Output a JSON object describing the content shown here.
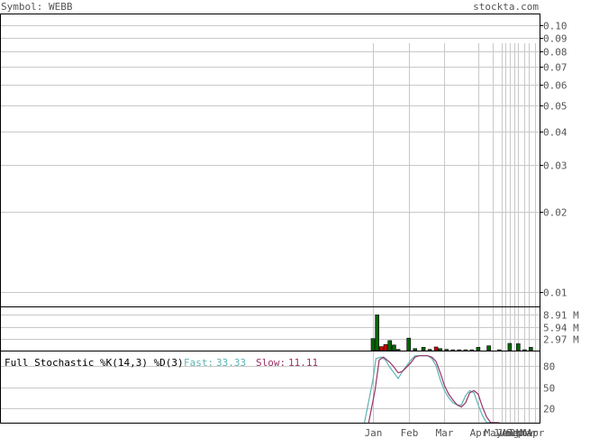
{
  "header": {
    "symbol_label": "Symbol: WEBB",
    "site": "stockta.com"
  },
  "colors": {
    "grid": "#c8c8c8",
    "frame": "#000000",
    "axis_text": "#555555",
    "vol_up": "#006600",
    "vol_down": "#cc0000",
    "fast": "#5fb3b3",
    "slow": "#993366"
  },
  "chart_data": [
    {
      "type": "line",
      "panel": "price",
      "scale": "log",
      "ylim": [
        0.0088,
        0.11
      ],
      "y_ticks": [
        0.1,
        0.09,
        0.08,
        0.07,
        0.06,
        0.05,
        0.04,
        0.03,
        0.02,
        0.01
      ],
      "y_tick_labels": [
        "0.10",
        "0.09",
        "0.08",
        "0.07",
        "0.06",
        "0.05",
        "0.04",
        "0.03",
        "0.02",
        "0.01"
      ],
      "series": []
    },
    {
      "type": "bar",
      "panel": "volume",
      "ylim": [
        0,
        10.8
      ],
      "y_ticks": [
        8.91,
        5.94,
        2.97
      ],
      "y_tick_labels": [
        "8.91 M",
        "5.94 M",
        "2.97 M"
      ],
      "bars": [
        {
          "t": 0.0,
          "value": 3.0,
          "dir": "up"
        },
        {
          "t": 1.0,
          "value": 8.9,
          "dir": "up"
        },
        {
          "t": 2.0,
          "value": 1.0,
          "dir": "down"
        },
        {
          "t": 3.0,
          "value": 1.5,
          "dir": "down"
        },
        {
          "t": 4.0,
          "value": 2.5,
          "dir": "up"
        },
        {
          "t": 5.0,
          "value": 1.4,
          "dir": "up"
        },
        {
          "t": 6.0,
          "value": 0.3,
          "dir": "up"
        },
        {
          "t": 8.5,
          "value": 3.1,
          "dir": "up"
        },
        {
          "t": 10.0,
          "value": 0.5,
          "dir": "up"
        },
        {
          "t": 12.0,
          "value": 0.8,
          "dir": "up"
        },
        {
          "t": 13.5,
          "value": 0.3,
          "dir": "up"
        },
        {
          "t": 15.0,
          "value": 0.9,
          "dir": "down"
        },
        {
          "t": 16.0,
          "value": 0.5,
          "dir": "up"
        },
        {
          "t": 17.5,
          "value": 0.3,
          "dir": "up"
        },
        {
          "t": 19.0,
          "value": 0.2,
          "dir": "up"
        },
        {
          "t": 20.5,
          "value": 0.2,
          "dir": "up"
        },
        {
          "t": 22.0,
          "value": 0.2,
          "dir": "up"
        },
        {
          "t": 23.5,
          "value": 0.2,
          "dir": "up"
        },
        {
          "t": 25.0,
          "value": 0.8,
          "dir": "up"
        },
        {
          "t": 27.5,
          "value": 1.2,
          "dir": "up"
        },
        {
          "t": 30.0,
          "value": 0.2,
          "dir": "up"
        },
        {
          "t": 32.5,
          "value": 1.8,
          "dir": "up"
        },
        {
          "t": 34.5,
          "value": 1.7,
          "dir": "up"
        },
        {
          "t": 36.0,
          "value": 0.2,
          "dir": "up"
        },
        {
          "t": 37.5,
          "value": 0.8,
          "dir": "up"
        }
      ]
    },
    {
      "type": "line",
      "panel": "stochastic",
      "title": "Full Stochastic %K(14,3) %D(3)",
      "fast_label": "Fast:",
      "fast_value": "33.33",
      "slow_label": "Slow:",
      "slow_value": "11.11",
      "ylim": [
        0,
        100
      ],
      "y_ticks": [
        80,
        50,
        20
      ],
      "y_tick_labels": [
        "80",
        "50",
        "20"
      ],
      "series": [
        {
          "role": "fast",
          "points": [
            [
              -2,
              0
            ],
            [
              0,
              60
            ],
            [
              0.7,
              90
            ],
            [
              2,
              92
            ],
            [
              3,
              88
            ],
            [
              4,
              78
            ],
            [
              5,
              70
            ],
            [
              6,
              62
            ],
            [
              7,
              72
            ],
            [
              8,
              80
            ],
            [
              9,
              88
            ],
            [
              10,
              94
            ],
            [
              11,
              94
            ],
            [
              12,
              94
            ],
            [
              13,
              94
            ],
            [
              14,
              90
            ],
            [
              15,
              80
            ],
            [
              16,
              60
            ],
            [
              17,
              45
            ],
            [
              18,
              35
            ],
            [
              19,
              28
            ],
            [
              20,
              25
            ],
            [
              21,
              25
            ],
            [
              22,
              38
            ],
            [
              23,
              45
            ],
            [
              24,
              42
            ],
            [
              25,
              25
            ],
            [
              26,
              10
            ],
            [
              27,
              0
            ],
            [
              29,
              0
            ]
          ]
        },
        {
          "role": "slow",
          "points": [
            [
              -1,
              0
            ],
            [
              0.5,
              45
            ],
            [
              1.5,
              88
            ],
            [
              2.5,
              92
            ],
            [
              4,
              85
            ],
            [
              5,
              78
            ],
            [
              6,
              70
            ],
            [
              7,
              72
            ],
            [
              8,
              78
            ],
            [
              9,
              84
            ],
            [
              10,
              92
            ],
            [
              11,
              94
            ],
            [
              12,
              94
            ],
            [
              13,
              94
            ],
            [
              14,
              92
            ],
            [
              15,
              86
            ],
            [
              16,
              70
            ],
            [
              17,
              52
            ],
            [
              18,
              40
            ],
            [
              19,
              32
            ],
            [
              20,
              25
            ],
            [
              21,
              22
            ],
            [
              22,
              28
            ],
            [
              23,
              42
            ],
            [
              24,
              45
            ],
            [
              25,
              40
            ],
            [
              26,
              22
            ],
            [
              27,
              8
            ],
            [
              28,
              0
            ],
            [
              30,
              0
            ]
          ]
        }
      ]
    }
  ],
  "x_axis": {
    "t_min": -15.0,
    "t_max": 40.0,
    "labels": [
      {
        "t": 0.0,
        "text": "Jan"
      },
      {
        "t": 8.5,
        "text": "Feb"
      },
      {
        "t": 17.0,
        "text": "Mar"
      },
      {
        "t": 25.0,
        "text": "Apr"
      },
      {
        "t": 28.5,
        "text": "May"
      },
      {
        "t": 30.5,
        "text": "Jun"
      },
      {
        "t": 31.5,
        "text": "Jul"
      },
      {
        "t": 32.5,
        "text": "Aug"
      },
      {
        "t": 33.5,
        "text": "Sep"
      },
      {
        "t": 34.5,
        "text": "Oct"
      },
      {
        "t": 36.0,
        "text": "Nov"
      },
      {
        "t": 37.0,
        "text": "Mar"
      },
      {
        "t": 38.5,
        "text": "Apr"
      }
    ]
  }
}
